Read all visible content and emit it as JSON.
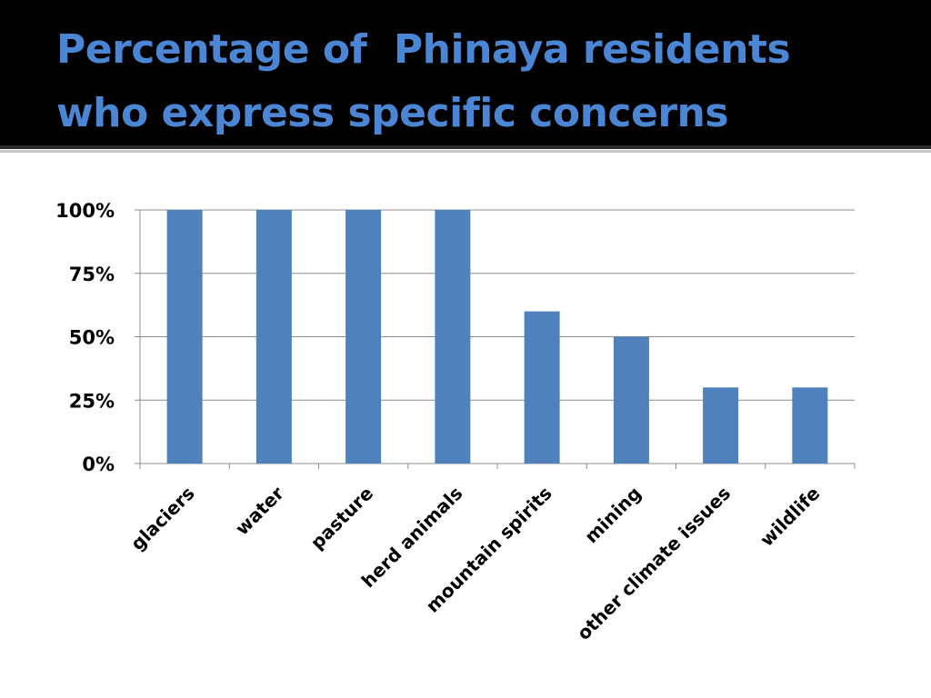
{
  "slide": {
    "title_line1": "Percentage of  Phinaya residents",
    "title_line2": "who express specific concerns"
  },
  "chart_data": {
    "type": "bar",
    "categories": [
      "glaciers",
      "water",
      "pasture",
      "herd animals",
      "mountain spirits",
      "mining",
      "other climate issues",
      "wildlife"
    ],
    "values": [
      100,
      100,
      100,
      100,
      60,
      50,
      30,
      30
    ],
    "yticks": [
      "0%",
      "25%",
      "50%",
      "75%",
      "100%"
    ],
    "ylim": [
      0,
      100
    ],
    "grid": true,
    "bar_color": "#4f81bd",
    "title_color": "#4a86d4"
  }
}
